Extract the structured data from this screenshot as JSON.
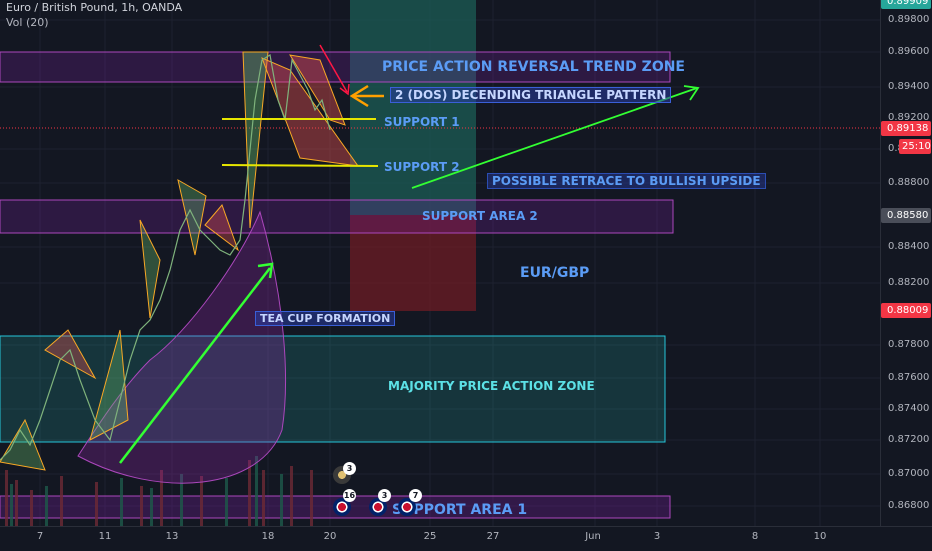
{
  "header": {
    "symbol": "Euro / British Pound, 1h, OANDA",
    "volume": "Vol (20)"
  },
  "price_axis": {
    "ticks": [
      "0.89800",
      "0.89600",
      "0.89400",
      "0.89200",
      "0.89000",
      "0.88800",
      "0.88600",
      "0.88400",
      "0.88200",
      "0.88000",
      "0.87800",
      "0.87600",
      "0.87400",
      "0.87200",
      "0.87000",
      "0.86800"
    ],
    "top_tag": "0.89909",
    "last_price": "0.89138",
    "countdown": "25:10",
    "tag_mid": "0.88580",
    "tag_low": "0.88009"
  },
  "date_axis": {
    "labels": [
      "7",
      "11",
      "13",
      "18",
      "20",
      "25",
      "27",
      "Jun",
      "3",
      "8",
      "10"
    ]
  },
  "annotations": {
    "reversal_zone": "PRICE ACTION REVERSAL TREND ZONE",
    "triangle": "2 (DOS) DECENDING TRIANGLE PATTERN",
    "support1": "SUPPORT 1",
    "support2": "SUPPORT 2",
    "retrace": "POSSIBLE RETRACE TO BULLISH UPSIDE",
    "support_area2": "SUPPORT AREA 2",
    "pair": "EUR/GBP",
    "tea_cup": "TEA CUP FORMATION",
    "majority": "MAJORITY PRICE ACTION ZONE",
    "support_area1": "SUPPORT AREA 1"
  },
  "events": {
    "e1": "3",
    "e2": "16",
    "e3": "3",
    "e4": "7"
  },
  "colors": {
    "background": "#131722",
    "support_line": "#e6e600",
    "green_arrow": "#33ff33",
    "zone_cyan": "#26c6da",
    "zone_purple": "#9c27b0",
    "text_blue": "#5b9cf5",
    "text_cyan": "#5ce1e6",
    "last_price_red": "#f23645"
  }
}
